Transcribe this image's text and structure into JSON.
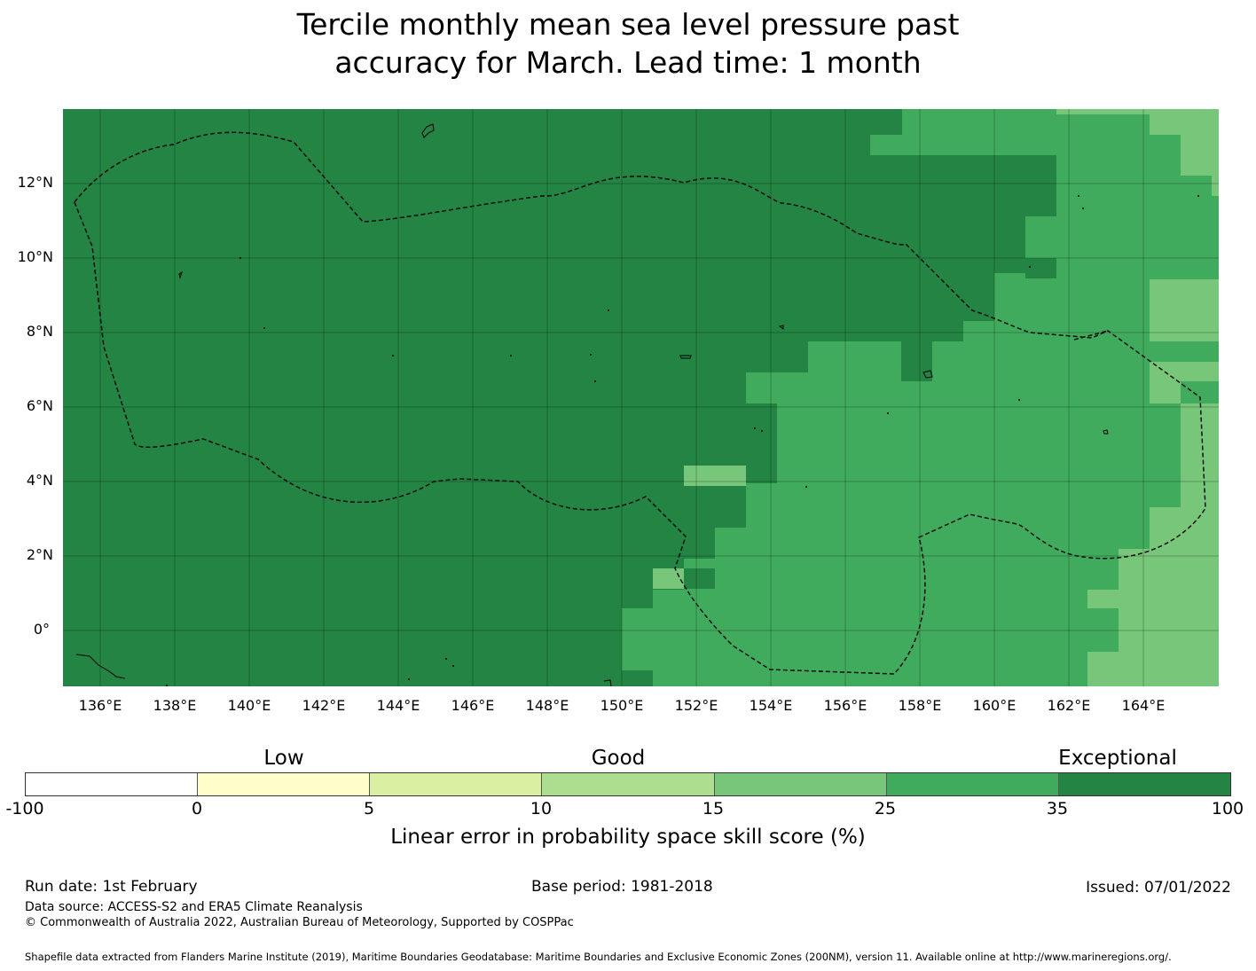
{
  "title": {
    "line1": "Tercile monthly mean sea level pressure past",
    "line2": "accuracy for March. Lead time: 1 month"
  },
  "map": {
    "lat_ticks": [
      "12°N",
      "10°N",
      "8°N",
      "6°N",
      "4°N",
      "2°N",
      "0°"
    ],
    "lon_ticks": [
      "136°E",
      "138°E",
      "140°E",
      "142°E",
      "144°E",
      "146°E",
      "148°E",
      "150°E",
      "152°E",
      "154°E",
      "156°E",
      "158°E",
      "160°E",
      "162°E",
      "164°E"
    ],
    "colors": {
      "cat_35_100": "#238443",
      "cat_25_35": "#41ab5d",
      "cat_15_25": "#78c679",
      "cat_10_15": "#addd8e",
      "cat_5_10": "#d9f0a3",
      "cat_0_5": "#ffffcc",
      "cat_neg": "#ffffff"
    }
  },
  "colorbar": {
    "categories": [
      "Low",
      "Good",
      "Exceptional"
    ],
    "ticks": [
      "-100",
      "0",
      "5",
      "10",
      "15",
      "25",
      "35",
      "100"
    ],
    "colors": [
      "#ffffff",
      "#ffffcc",
      "#d9f0a3",
      "#addd8e",
      "#78c679",
      "#41ab5d",
      "#238443"
    ],
    "label": "Linear error in probability space skill score (%)"
  },
  "footer": {
    "run_date": "Run date: 1st February",
    "base_period": "Base period: 1981-2018",
    "issued": "Issued: 07/01/2022",
    "data_source": "Data source: ACCESS-S2 and ERA5 Climate Reanalysis",
    "copyright": "© Commonwealth of Australia 2022, Australian Bureau of Meteorology, Supported by COSPPac",
    "shapefile": "Shapefile data extracted from Flanders Marine Institute (2019), Maritime Boundaries Geodatabase: Maritime Boundaries and Exclusive Economic Zones (200NM), version 11. Available online at http://www.marineregions.org/."
  }
}
